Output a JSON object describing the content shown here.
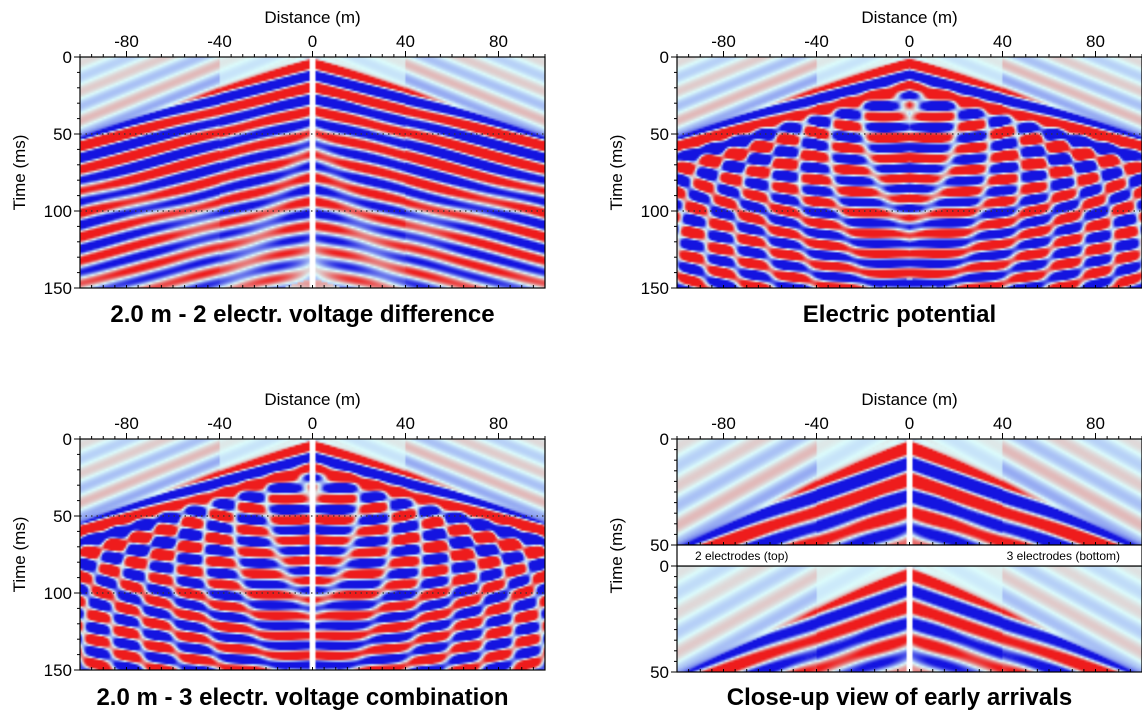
{
  "colors": {
    "background": "#dcfcfc",
    "positive": "#ee1c1c",
    "negative": "#1414e0",
    "guide": "#333333"
  },
  "chart_data": [
    {
      "type": "heatmap",
      "caption": "2.0 m - 2 electr. voltage difference",
      "xlabel": "Distance (m)",
      "ylabel": "Time (ms)",
      "xlim": [
        -100,
        100
      ],
      "ylim": [
        0,
        150
      ],
      "x_ticks": [
        -80,
        -40,
        0,
        40,
        80
      ],
      "y_ticks": [
        0,
        50,
        100,
        150
      ],
      "guides_ms": [
        50,
        100
      ],
      "pattern": {
        "vel": 0.53,
        "arms": 9,
        "chevron": 0,
        "center_gap": true
      }
    },
    {
      "type": "heatmap",
      "caption": "Electric potential",
      "xlabel": "Distance (m)",
      "ylabel": "Time (ms)",
      "xlim": [
        -100,
        100
      ],
      "ylim": [
        0,
        150
      ],
      "x_ticks": [
        -80,
        -40,
        0,
        40,
        80
      ],
      "y_ticks": [
        0,
        50,
        100,
        150
      ],
      "guides_ms": [
        50,
        100
      ],
      "pattern": {
        "vel": 0.53,
        "arms": 9,
        "chevron": 1,
        "center_gap": false
      }
    },
    {
      "type": "heatmap",
      "caption": "2.0 m - 3 electr. voltage combination",
      "xlabel": "Distance (m)",
      "ylabel": "Time (ms)",
      "xlim": [
        -100,
        100
      ],
      "ylim": [
        0,
        150
      ],
      "x_ticks": [
        -80,
        -40,
        0,
        40,
        80
      ],
      "y_ticks": [
        0,
        50,
        100,
        150
      ],
      "guides_ms": [
        50,
        100
      ],
      "pattern": {
        "vel": 0.55,
        "arms": 9,
        "chevron": 1,
        "center_gap": true
      }
    },
    {
      "type": "heatmap",
      "caption": "Close-up view of early arrivals",
      "xlabel": "Distance (m)",
      "ylabel": "Time (ms)",
      "xlim": [
        -100,
        100
      ],
      "x_ticks": [
        -80,
        -40,
        0,
        40,
        80
      ],
      "subpanels": [
        {
          "label": "2 electrodes (top)",
          "ylim": [
            0,
            50
          ],
          "y_ticks": [
            0,
            50
          ]
        },
        {
          "label": "3 electrodes (bottom)",
          "ylim": [
            0,
            50
          ],
          "y_ticks": [
            0,
            50
          ]
        }
      ],
      "pattern": {
        "vel": 0.53,
        "arms": 6,
        "chevron": 0,
        "center_gap": true
      }
    }
  ]
}
